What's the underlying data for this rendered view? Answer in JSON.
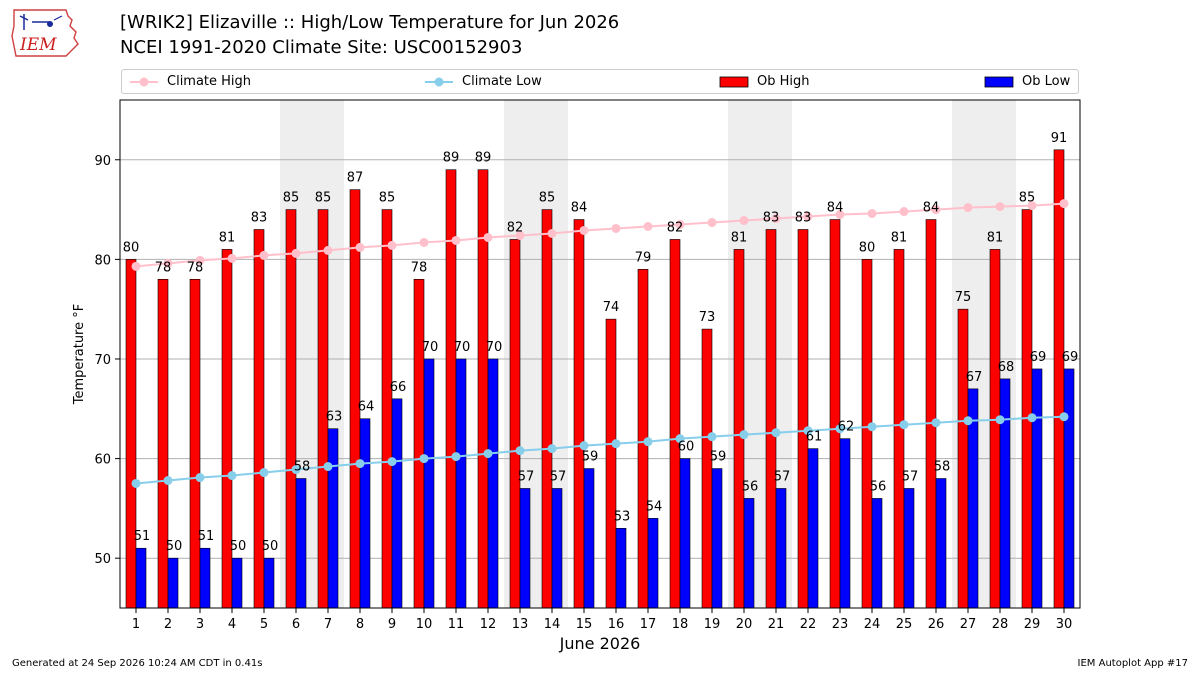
{
  "header": {
    "title_line1": "[WRIK2] Elizaville :: High/Low Temperature for Jun 2026",
    "title_line2": "NCEI 1991-2020 Climate Site: USC00152903",
    "logo_text": "IEM"
  },
  "footer": {
    "left": "Generated at 24 Sep 2026 10:24 AM CDT in 0.41s",
    "right": "IEM Autoplot App #17"
  },
  "colors": {
    "ob_high": "#ff0000",
    "ob_low": "#0000ff",
    "climate_high": "#ffc0cb",
    "climate_low": "#87ceeb",
    "weekend_band": "#eeeeee",
    "grid": "#b0b0b0"
  },
  "chart_data": {
    "type": "bar",
    "title": "[WRIK2] Elizaville :: High/Low Temperature for Jun 2026",
    "subtitle": "NCEI 1991-2020 Climate Site: USC00152903",
    "xlabel": "June 2026",
    "ylabel": "Temperature °F",
    "ylim": [
      45,
      96
    ],
    "yticks": [
      50,
      60,
      70,
      80,
      90
    ],
    "grid": true,
    "legend_position": "top",
    "categories": [
      "1",
      "2",
      "3",
      "4",
      "5",
      "6",
      "7",
      "8",
      "9",
      "10",
      "11",
      "12",
      "13",
      "14",
      "15",
      "16",
      "17",
      "18",
      "19",
      "20",
      "21",
      "22",
      "23",
      "24",
      "25",
      "26",
      "27",
      "28",
      "29",
      "30"
    ],
    "shaded_days": [
      6,
      7,
      13,
      14,
      20,
      21,
      27,
      28
    ],
    "series": [
      {
        "name": "Ob High",
        "kind": "bar",
        "color": "#ff0000",
        "values": [
          80,
          78,
          78,
          81,
          83,
          85,
          85,
          87,
          85,
          78,
          89,
          89,
          82,
          85,
          84,
          74,
          79,
          82,
          73,
          81,
          83,
          83,
          84,
          80,
          81,
          84,
          75,
          81,
          85,
          91
        ]
      },
      {
        "name": "Ob Low",
        "kind": "bar",
        "color": "#0000ff",
        "values": [
          51,
          50,
          51,
          50,
          50,
          58,
          63,
          64,
          66,
          70,
          70,
          70,
          57,
          57,
          59,
          53,
          54,
          60,
          59,
          56,
          57,
          61,
          62,
          56,
          57,
          58,
          67,
          68,
          69,
          69
        ]
      },
      {
        "name": "Climate High",
        "kind": "line",
        "color": "#ffc0cb",
        "values": [
          79.3,
          79.6,
          79.9,
          80.1,
          80.4,
          80.6,
          80.9,
          81.2,
          81.4,
          81.7,
          81.9,
          82.2,
          82.4,
          82.6,
          82.9,
          83.1,
          83.3,
          83.5,
          83.7,
          83.9,
          84.1,
          84.3,
          84.5,
          84.6,
          84.8,
          85.0,
          85.2,
          85.3,
          85.4,
          85.6
        ]
      },
      {
        "name": "Climate Low",
        "kind": "line",
        "color": "#87ceeb",
        "values": [
          57.5,
          57.8,
          58.1,
          58.3,
          58.6,
          58.9,
          59.2,
          59.5,
          59.7,
          60.0,
          60.2,
          60.5,
          60.8,
          61.0,
          61.3,
          61.5,
          61.7,
          62.0,
          62.2,
          62.4,
          62.6,
          62.8,
          63.0,
          63.2,
          63.4,
          63.6,
          63.8,
          63.9,
          64.1,
          64.2
        ]
      }
    ]
  }
}
